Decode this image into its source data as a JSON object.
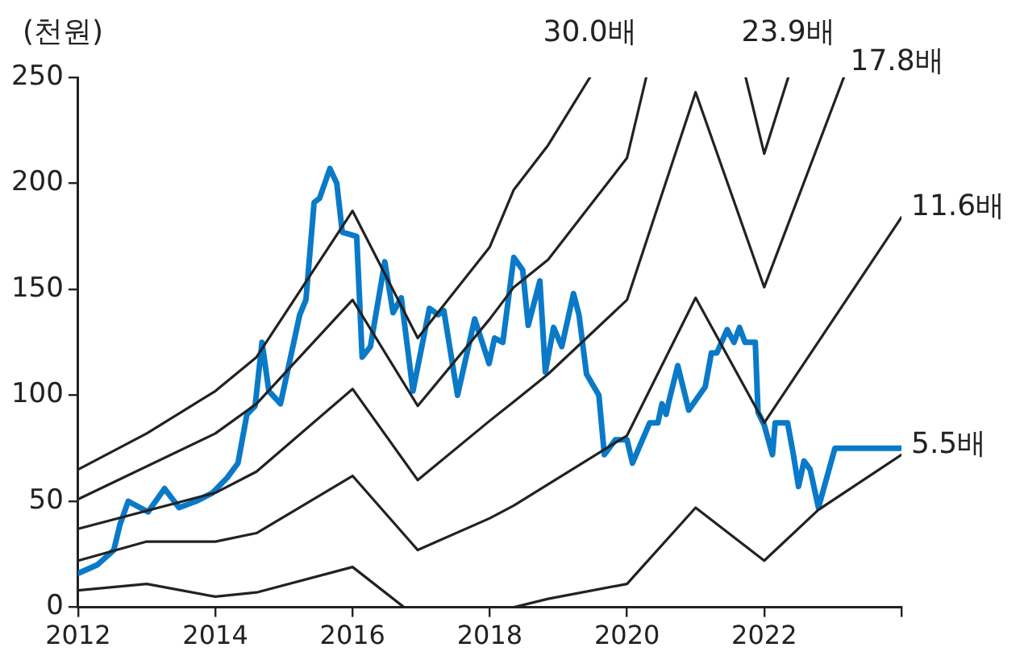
{
  "chart_data": {
    "type": "line",
    "ylabel": "(천원)",
    "xlim": [
      2012,
      2024
    ],
    "xticks": [
      2012,
      2014,
      2016,
      2018,
      2020,
      2022,
      {
        "value": 2024,
        "label": null
      }
    ],
    "ylim": [
      0,
      250
    ],
    "yticks": [
      0,
      50,
      100,
      150,
      200,
      250
    ],
    "grid": false,
    "legend": false,
    "marker": "none",
    "line_style": "solid",
    "series": [
      {
        "name": "30.0배",
        "color": "#222222",
        "x": [
          2012,
          2013,
          2014,
          2014.6,
          2016,
          2016.95,
          2018,
          2018.35,
          2018.85,
          2019.46
        ],
        "values": [
          65,
          82,
          102,
          118,
          187,
          127,
          170,
          197,
          218,
          250
        ]
      },
      {
        "name": "23.9배",
        "color": "#222222",
        "x": [
          2012,
          2014,
          2014.6,
          2016,
          2016.95,
          2018,
          2018.35,
          2018.85,
          2020,
          2020.28,
          2021,
          2021.73,
          2022,
          2022.35
        ],
        "values": [
          51,
          82,
          96,
          145,
          95,
          136,
          151,
          164,
          212,
          250,
          null,
          250,
          214,
          250
        ]
      },
      {
        "name": "17.8배",
        "color": "#222222",
        "x": [
          2012,
          2014,
          2014.6,
          2016,
          2016.95,
          2018,
          2018.35,
          2018.85,
          2020,
          2021,
          2022,
          2023.16
        ],
        "values": [
          37,
          54,
          64,
          103,
          60,
          88,
          97,
          110,
          145,
          243,
          151,
          250
        ]
      },
      {
        "name": "11.6배",
        "color": "#222222",
        "x": [
          2012,
          2013,
          2014,
          2014.6,
          2016,
          2016.95,
          2018,
          2018.35,
          2020,
          2021,
          2022,
          2024
        ],
        "values": [
          22,
          31,
          31,
          35,
          62,
          27,
          42,
          48,
          81,
          146,
          87,
          184
        ]
      },
      {
        "name": "5.5배",
        "color": "#222222",
        "x": [
          2012,
          2013,
          2014,
          2014.6,
          2016,
          2016.75,
          2017.5,
          2018.35,
          2018.85,
          2020,
          2021,
          2022,
          2022.79,
          2024
        ],
        "values": [
          8,
          11,
          5,
          7,
          19,
          0,
          null,
          0,
          4,
          11,
          47,
          22,
          46,
          72
        ]
      },
      {
        "color": "#0a7ac8",
        "x": [
          2012,
          2012.28,
          2012.52,
          2012.61,
          2012.73,
          2013.02,
          2013.26,
          2013.47,
          2013.72,
          2013.96,
          2014.17,
          2014.33,
          2014.46,
          2014.58,
          2014.68,
          2014.78,
          2014.95,
          2015.23,
          2015.32,
          2015.44,
          2015.52,
          2015.67,
          2015.77,
          2015.85,
          2016.06,
          2016.14,
          2016.26,
          2016.47,
          2016.59,
          2016.71,
          2016.88,
          2017.12,
          2017.25,
          2017.33,
          2017.53,
          2017.78,
          2017.99,
          2018.07,
          2018.19,
          2018.35,
          2018.48,
          2018.56,
          2018.73,
          2018.81,
          2018.93,
          2019.05,
          2019.22,
          2019.3,
          2019.41,
          2019.59,
          2019.67,
          2019.83,
          2020,
          2020.08,
          2020.33,
          2020.45,
          2020.51,
          2020.57,
          2020.61,
          2020.74,
          2020.9,
          2021.14,
          2021.23,
          2021.31,
          2021.46,
          2021.56,
          2021.64,
          2021.72,
          2021.87,
          2021.91,
          2022,
          2022.12,
          2022.16,
          2022.34,
          2022.42,
          2022.5,
          2022.58,
          2022.67,
          2022.79,
          2023.03,
          2024
        ],
        "values": [
          16,
          20,
          27,
          39,
          50,
          45,
          56,
          47,
          50,
          54,
          61,
          68,
          91,
          95,
          125,
          102,
          96,
          138,
          145,
          191,
          193,
          207,
          200,
          177,
          175,
          118,
          123,
          163,
          139,
          146,
          102,
          141,
          138,
          140,
          100,
          136,
          115,
          127,
          125,
          165,
          159,
          133,
          154,
          111,
          132,
          123,
          148,
          138,
          110,
          100,
          72,
          79,
          79,
          68,
          87,
          87,
          96,
          91,
          97,
          114,
          93,
          104,
          120,
          120,
          131,
          125,
          132,
          125,
          125,
          92,
          86,
          72,
          87,
          87,
          73,
          57,
          69,
          65,
          47,
          75,
          75
        ]
      }
    ]
  }
}
